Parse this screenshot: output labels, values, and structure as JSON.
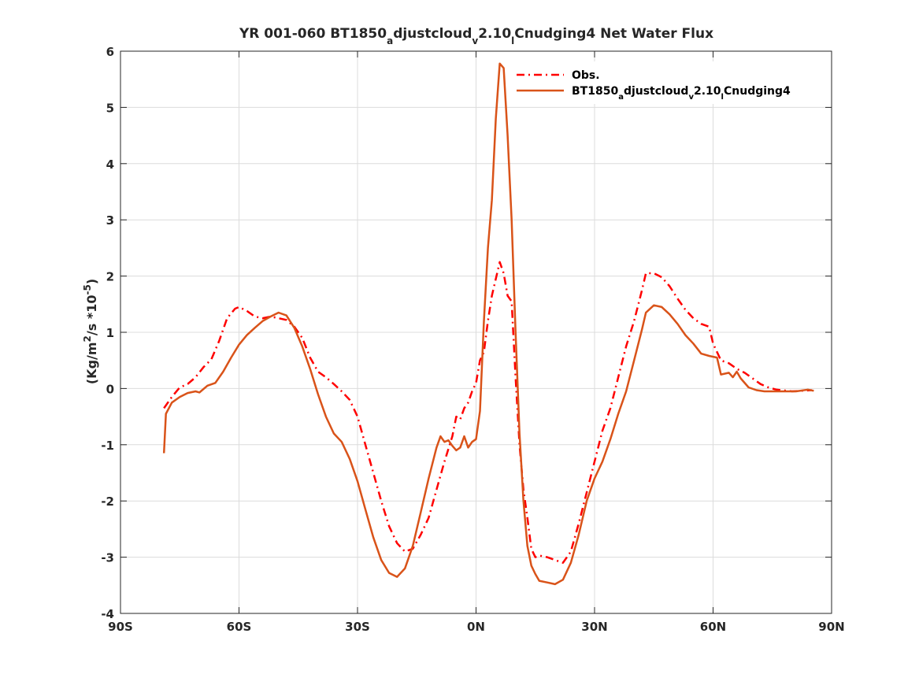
{
  "chart_data": {
    "type": "line",
    "title": {
      "prefix": "YR 001-060 BT1850",
      "s1": "a",
      "m1": "djustcloud",
      "s2": "v",
      "m2": "2.10",
      "s3": "l",
      "m3": "Cnudging4  Net Water Flux"
    },
    "ylabel": {
      "pre": "(Kg/m",
      "sup1": "2",
      "mid": "/s *10",
      "sup2": "-5",
      "post": ")"
    },
    "xlim": [
      -90,
      90
    ],
    "ylim": [
      -4,
      6
    ],
    "xticks": [
      -90,
      -60,
      -30,
      0,
      30,
      60,
      90
    ],
    "xtick_labels": [
      "90S",
      "60S",
      "30S",
      "0N",
      "30N",
      "60N",
      "90N"
    ],
    "yticks": [
      -4,
      -3,
      -2,
      -1,
      0,
      1,
      2,
      3,
      4,
      5,
      6
    ],
    "ytick_labels": [
      "-4",
      "-3",
      "-2",
      "-1",
      "0",
      "1",
      "2",
      "3",
      "4",
      "5",
      "6"
    ],
    "grid": true,
    "legend_position": "top-right",
    "legend": {
      "obs": "Obs.",
      "model": {
        "prefix": "BT1850",
        "s1": "a",
        "m1": "djustcloud",
        "s2": "v",
        "m2": "2.10",
        "s3": "l",
        "m3": "Cnudging4"
      }
    },
    "series": [
      {
        "name": "Obs.",
        "color": "#ff0000",
        "style": "dashdot",
        "points": [
          [
            -79,
            -0.35
          ],
          [
            -77,
            -0.15
          ],
          [
            -75,
            0.02
          ],
          [
            -73,
            0.08
          ],
          [
            -71,
            0.2
          ],
          [
            -69,
            0.38
          ],
          [
            -67,
            0.52
          ],
          [
            -65,
            0.85
          ],
          [
            -63,
            1.25
          ],
          [
            -61,
            1.42
          ],
          [
            -60,
            1.45
          ],
          [
            -58,
            1.38
          ],
          [
            -56,
            1.28
          ],
          [
            -54,
            1.25
          ],
          [
            -52,
            1.28
          ],
          [
            -50,
            1.25
          ],
          [
            -48,
            1.22
          ],
          [
            -46,
            1.1
          ],
          [
            -44,
            0.9
          ],
          [
            -42,
            0.55
          ],
          [
            -40,
            0.3
          ],
          [
            -38,
            0.2
          ],
          [
            -36,
            0.08
          ],
          [
            -34,
            -0.05
          ],
          [
            -32,
            -0.2
          ],
          [
            -30,
            -0.5
          ],
          [
            -28,
            -1.0
          ],
          [
            -26,
            -1.5
          ],
          [
            -24,
            -2.0
          ],
          [
            -22,
            -2.45
          ],
          [
            -20,
            -2.75
          ],
          [
            -18,
            -2.9
          ],
          [
            -16,
            -2.85
          ],
          [
            -14,
            -2.6
          ],
          [
            -12,
            -2.3
          ],
          [
            -10,
            -1.8
          ],
          [
            -8,
            -1.3
          ],
          [
            -6,
            -0.85
          ],
          [
            -5,
            -0.5
          ],
          [
            -4,
            -0.55
          ],
          [
            -3,
            -0.35
          ],
          [
            -2,
            -0.25
          ],
          [
            -1,
            -0.05
          ],
          [
            0,
            0.1
          ],
          [
            1,
            0.5
          ],
          [
            2,
            0.65
          ],
          [
            3,
            1.2
          ],
          [
            4,
            1.65
          ],
          [
            5,
            1.95
          ],
          [
            6,
            2.25
          ],
          [
            7,
            2.05
          ],
          [
            8,
            1.65
          ],
          [
            9,
            1.55
          ],
          [
            10,
            0.2
          ],
          [
            11,
            -1.0
          ],
          [
            12,
            -1.8
          ],
          [
            13,
            -2.3
          ],
          [
            14,
            -2.85
          ],
          [
            15,
            -3.0
          ],
          [
            16,
            -2.97
          ],
          [
            18,
            -3.0
          ],
          [
            20,
            -3.05
          ],
          [
            22,
            -3.1
          ],
          [
            24,
            -2.9
          ],
          [
            26,
            -2.4
          ],
          [
            28,
            -1.85
          ],
          [
            30,
            -1.3
          ],
          [
            32,
            -0.75
          ],
          [
            34,
            -0.35
          ],
          [
            36,
            0.2
          ],
          [
            38,
            0.75
          ],
          [
            40,
            1.2
          ],
          [
            42,
            1.75
          ],
          [
            43,
            2.05
          ],
          [
            45,
            2.05
          ],
          [
            47,
            1.98
          ],
          [
            49,
            1.82
          ],
          [
            51,
            1.6
          ],
          [
            53,
            1.4
          ],
          [
            55,
            1.25
          ],
          [
            57,
            1.15
          ],
          [
            59,
            1.1
          ],
          [
            60,
            0.8
          ],
          [
            62,
            0.5
          ],
          [
            64,
            0.45
          ],
          [
            66,
            0.35
          ],
          [
            68,
            0.28
          ],
          [
            70,
            0.18
          ],
          [
            72,
            0.08
          ],
          [
            74,
            0.02
          ],
          [
            76,
            -0.02
          ],
          [
            80,
            -0.05
          ],
          [
            85,
            -0.03
          ]
        ]
      },
      {
        "name": "BT1850adjustcloudv2.10lCnudging4",
        "color": "#d95319",
        "style": "solid",
        "points": [
          [
            -79,
            -1.15
          ],
          [
            -78.5,
            -0.45
          ],
          [
            -77,
            -0.25
          ],
          [
            -75,
            -0.15
          ],
          [
            -73,
            -0.08
          ],
          [
            -71,
            -0.05
          ],
          [
            -70,
            -0.07
          ],
          [
            -68,
            0.05
          ],
          [
            -66,
            0.1
          ],
          [
            -64,
            0.3
          ],
          [
            -62,
            0.55
          ],
          [
            -60,
            0.78
          ],
          [
            -58,
            0.95
          ],
          [
            -56,
            1.08
          ],
          [
            -54,
            1.2
          ],
          [
            -52,
            1.28
          ],
          [
            -50,
            1.35
          ],
          [
            -48,
            1.3
          ],
          [
            -46,
            1.08
          ],
          [
            -44,
            0.75
          ],
          [
            -42,
            0.35
          ],
          [
            -40,
            -0.1
          ],
          [
            -38,
            -0.5
          ],
          [
            -36,
            -0.8
          ],
          [
            -34,
            -0.95
          ],
          [
            -32,
            -1.25
          ],
          [
            -30,
            -1.65
          ],
          [
            -28,
            -2.15
          ],
          [
            -26,
            -2.65
          ],
          [
            -24,
            -3.05
          ],
          [
            -22,
            -3.28
          ],
          [
            -20,
            -3.35
          ],
          [
            -18,
            -3.2
          ],
          [
            -16,
            -2.8
          ],
          [
            -14,
            -2.2
          ],
          [
            -12,
            -1.6
          ],
          [
            -10,
            -1.05
          ],
          [
            -9,
            -0.85
          ],
          [
            -8,
            -0.95
          ],
          [
            -7,
            -0.92
          ],
          [
            -6,
            -1.02
          ],
          [
            -5,
            -1.1
          ],
          [
            -4,
            -1.05
          ],
          [
            -3,
            -0.85
          ],
          [
            -2,
            -1.05
          ],
          [
            -1,
            -0.95
          ],
          [
            0,
            -0.9
          ],
          [
            1,
            -0.4
          ],
          [
            2,
            1.2
          ],
          [
            3,
            2.5
          ],
          [
            4,
            3.35
          ],
          [
            5,
            4.8
          ],
          [
            6,
            5.78
          ],
          [
            7,
            5.7
          ],
          [
            8,
            4.5
          ],
          [
            9,
            3.0
          ],
          [
            10,
            1.0
          ],
          [
            11,
            -0.8
          ],
          [
            12,
            -2.0
          ],
          [
            13,
            -2.8
          ],
          [
            14,
            -3.15
          ],
          [
            15,
            -3.3
          ],
          [
            16,
            -3.42
          ],
          [
            18,
            -3.45
          ],
          [
            20,
            -3.48
          ],
          [
            22,
            -3.4
          ],
          [
            24,
            -3.1
          ],
          [
            26,
            -2.6
          ],
          [
            28,
            -2.0
          ],
          [
            30,
            -1.6
          ],
          [
            32,
            -1.3
          ],
          [
            34,
            -0.9
          ],
          [
            36,
            -0.45
          ],
          [
            38,
            -0.05
          ],
          [
            40,
            0.5
          ],
          [
            42,
            1.05
          ],
          [
            43,
            1.35
          ],
          [
            45,
            1.48
          ],
          [
            47,
            1.45
          ],
          [
            49,
            1.32
          ],
          [
            51,
            1.15
          ],
          [
            53,
            0.95
          ],
          [
            55,
            0.8
          ],
          [
            57,
            0.62
          ],
          [
            59,
            0.58
          ],
          [
            61,
            0.55
          ],
          [
            62,
            0.25
          ],
          [
            64,
            0.28
          ],
          [
            65,
            0.2
          ],
          [
            66,
            0.3
          ],
          [
            67,
            0.18
          ],
          [
            69,
            0.02
          ],
          [
            71,
            -0.03
          ],
          [
            73,
            -0.05
          ],
          [
            77,
            -0.05
          ],
          [
            81,
            -0.05
          ],
          [
            84,
            -0.02
          ],
          [
            85.5,
            -0.04
          ]
        ]
      }
    ]
  }
}
